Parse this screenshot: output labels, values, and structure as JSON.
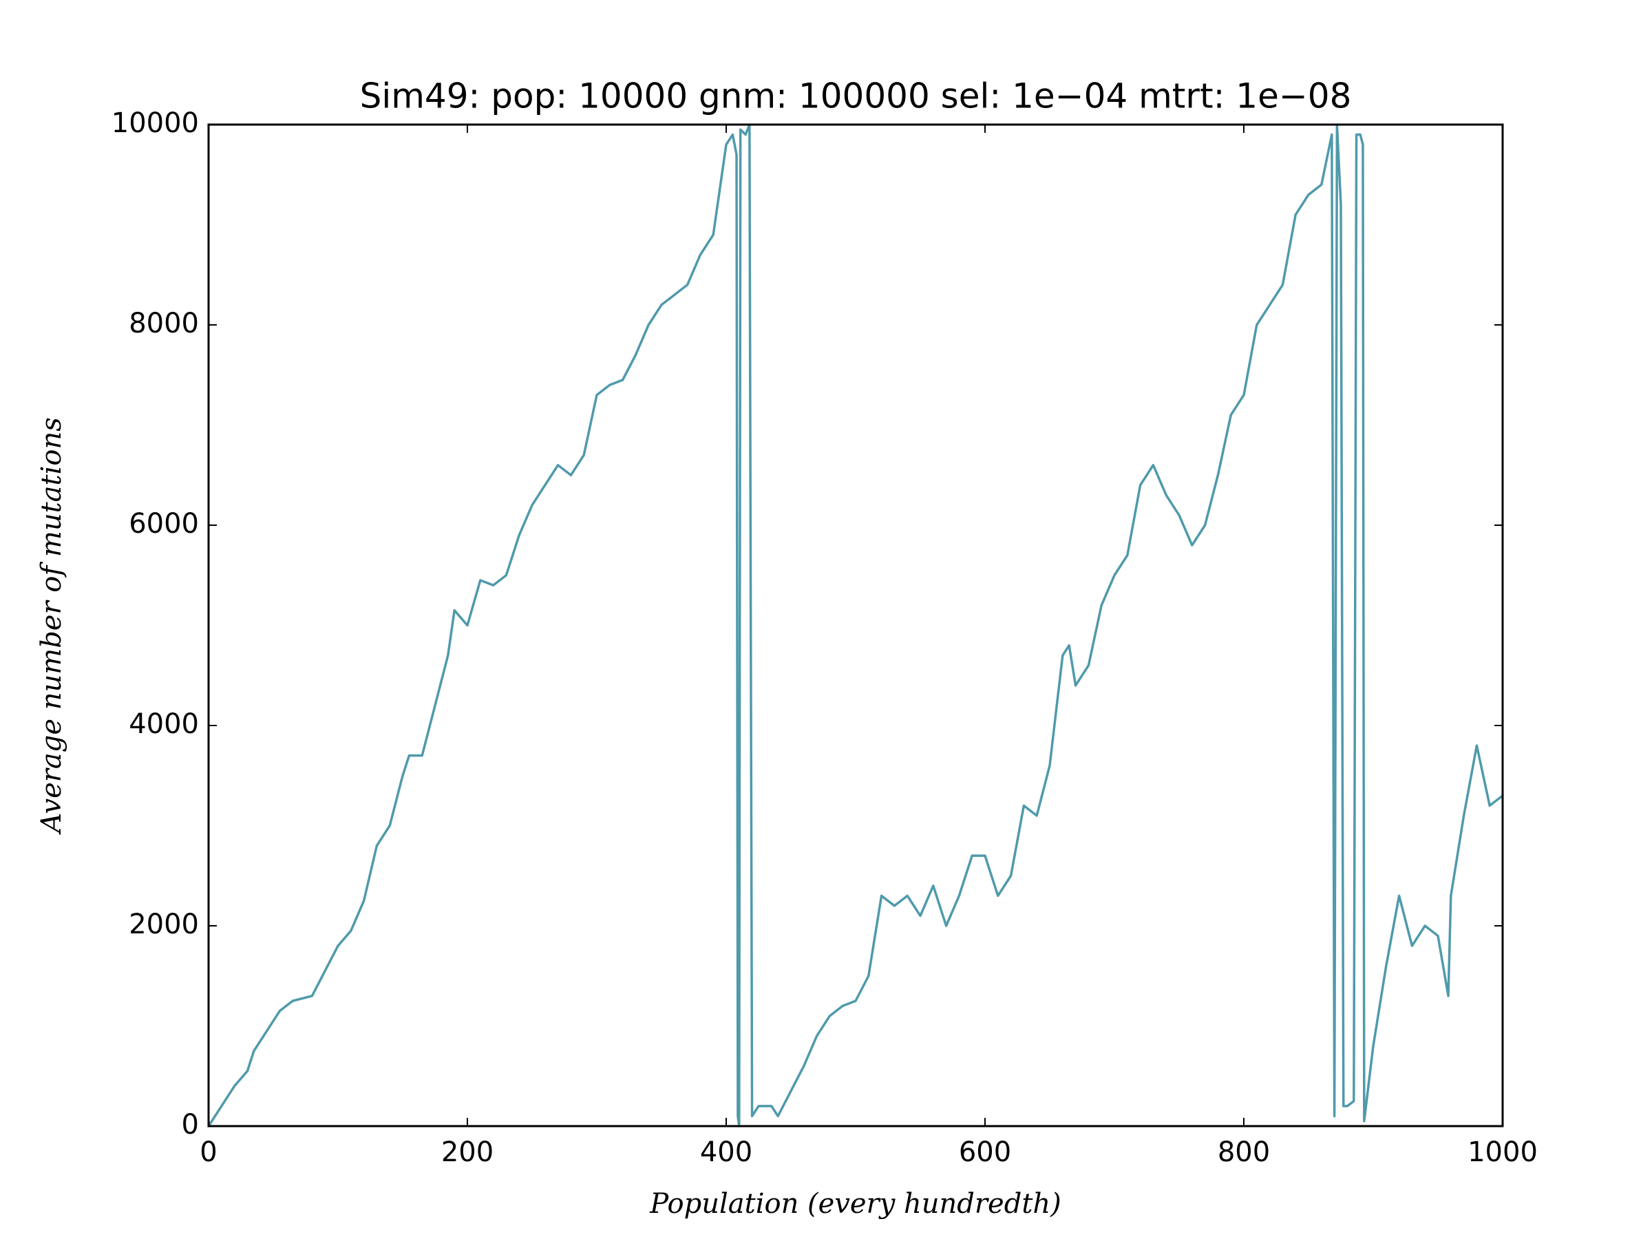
{
  "chart_data": {
    "type": "line",
    "title": "Sim49: pop: 10000 gnm: 100000 sel: 1e−04 mtrt: 1e−08",
    "x_label": "Population (every hundredth)",
    "y_label": "Average number of mutations",
    "xlim": [
      0,
      1000
    ],
    "ylim": [
      0,
      10000
    ],
    "xticks": [
      0,
      200,
      400,
      600,
      800,
      1000
    ],
    "yticks": [
      0,
      2000,
      4000,
      6000,
      8000,
      10000
    ],
    "grid": false,
    "series": [
      {
        "color": "#4f9aab",
        "x": [
          0,
          10,
          20,
          30,
          35,
          45,
          55,
          65,
          80,
          90,
          100,
          110,
          120,
          130,
          140,
          150,
          155,
          165,
          175,
          185,
          190,
          200,
          210,
          220,
          230,
          240,
          250,
          260,
          270,
          280,
          290,
          300,
          310,
          320,
          330,
          340,
          350,
          360,
          370,
          380,
          390,
          400,
          405,
          408,
          409,
          410,
          411,
          415,
          418,
          420,
          425,
          435,
          440,
          450,
          460,
          470,
          480,
          490,
          500,
          510,
          520,
          530,
          540,
          550,
          560,
          570,
          580,
          590,
          600,
          610,
          620,
          630,
          640,
          650,
          660,
          665,
          670,
          680,
          690,
          700,
          710,
          720,
          730,
          740,
          750,
          760,
          770,
          780,
          790,
          800,
          810,
          820,
          830,
          840,
          850,
          860,
          868,
          870,
          872,
          875,
          877,
          880,
          885,
          887,
          890,
          892,
          893,
          900,
          910,
          920,
          930,
          940,
          950,
          958,
          960,
          970,
          980,
          990,
          1000
        ],
        "values": [
          0,
          200,
          400,
          550,
          750,
          950,
          1150,
          1250,
          1300,
          1550,
          1800,
          1950,
          2250,
          2800,
          3000,
          3500,
          3700,
          3700,
          4200,
          4700,
          5150,
          5000,
          5450,
          5400,
          5500,
          5900,
          6200,
          6400,
          6600,
          6500,
          6700,
          7300,
          7400,
          7450,
          7700,
          8000,
          8200,
          8300,
          8400,
          8700,
          8900,
          9800,
          9900,
          9700,
          100,
          0,
          9950,
          9900,
          10000,
          100,
          200,
          200,
          100,
          350,
          600,
          900,
          1100,
          1200,
          1250,
          1500,
          2300,
          2200,
          2300,
          2100,
          2400,
          2000,
          2300,
          2700,
          2700,
          2300,
          2500,
          3200,
          3100,
          3600,
          4700,
          4800,
          4400,
          4600,
          5200,
          5500,
          5700,
          6400,
          6600,
          6300,
          6100,
          5800,
          6000,
          6500,
          7100,
          7300,
          8000,
          8200,
          8400,
          9100,
          9300,
          9400,
          9900,
          100,
          10000,
          9200,
          200,
          200,
          250,
          9900,
          9900,
          9800,
          50,
          800,
          1600,
          2300,
          1800,
          2000,
          1900,
          1300,
          2300,
          3100,
          3800,
          3200,
          3300
        ]
      }
    ]
  }
}
